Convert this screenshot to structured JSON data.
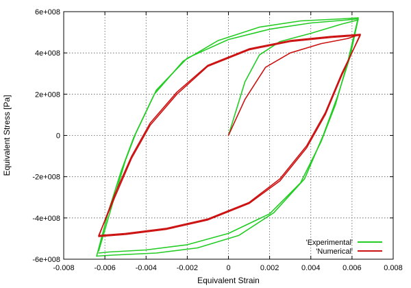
{
  "chart_data": {
    "type": "line",
    "xlabel": "Equivalent Strain",
    "ylabel": "Equivalent Stress [Pa]",
    "xlim": [
      -0.008,
      0.008
    ],
    "ylim": [
      -600000000,
      600000000
    ],
    "x_ticks": [
      -0.008,
      -0.006,
      -0.004,
      -0.002,
      0,
      0.002,
      0.004,
      0.006,
      0.008
    ],
    "x_tick_labels": [
      "-0.008",
      "-0.006",
      "-0.004",
      "-0.002",
      "0",
      "0.002",
      "0.004",
      "0.006",
      "0.008"
    ],
    "y_ticks": [
      -600000000,
      -400000000,
      -200000000,
      0,
      200000000,
      400000000,
      600000000
    ],
    "y_tick_labels": [
      "-6e+008",
      "-4e+008",
      "-2e+008",
      "0",
      "2e+008",
      "4e+008",
      "6e+008"
    ],
    "grid": true,
    "legend_position": "bottom-right",
    "series": [
      {
        "name": "'Experimental'",
        "color": "#22cc22",
        "segments": [
          [
            [
              0,
              0
            ],
            [
              0.0008,
              260000000.0
            ],
            [
              0.0015,
              390000000.0
            ],
            [
              0.0025,
              455000000.0
            ],
            [
              0.004,
              495000000.0
            ],
            [
              0.0055,
              540000000.0
            ],
            [
              0.0063,
              560000000.0
            ]
          ],
          [
            [
              0.0063,
              565000000.0
            ],
            [
              0.0058,
              560000000.0
            ],
            [
              0.004,
              545000000.0
            ],
            [
              0.002,
              515000000.0
            ],
            [
              0,
              465000000.0
            ],
            [
              -0.002,
              375000000.0
            ],
            [
              -0.0035,
              220000000.0
            ],
            [
              -0.0045,
              10000000.0
            ],
            [
              -0.005,
              -120000000.0
            ],
            [
              -0.0056,
              -320000000.0
            ],
            [
              -0.0063,
              -560000000.0
            ]
          ],
          [
            [
              -0.0063,
              -570000000.0
            ],
            [
              -0.0058,
              -565000000.0
            ],
            [
              -0.004,
              -555000000.0
            ],
            [
              -0.002,
              -530000000.0
            ],
            [
              0,
              -475000000.0
            ],
            [
              0.002,
              -380000000.0
            ],
            [
              0.0035,
              -230000000.0
            ],
            [
              0.0045,
              -30000000.0
            ],
            [
              0.0052,
              150000000.0
            ],
            [
              0.0058,
              360000000.0
            ],
            [
              0.0063,
              570000000.0
            ]
          ],
          [
            [
              0.0063,
              570000000.0
            ],
            [
              0.0055,
              565000000.0
            ],
            [
              0.0035,
              555000000.0
            ],
            [
              0.0015,
              525000000.0
            ],
            [
              -0.0005,
              460000000.0
            ],
            [
              -0.0022,
              360000000.0
            ],
            [
              -0.0036,
              200000000.0
            ],
            [
              -0.0046,
              -10000000.0
            ],
            [
              -0.0052,
              -170000000.0
            ],
            [
              -0.0058,
              -360000000.0
            ],
            [
              -0.0064,
              -585000000.0
            ]
          ],
          [
            [
              -0.0064,
              -585000000.0
            ],
            [
              -0.0056,
              -580000000.0
            ],
            [
              -0.0035,
              -570000000.0
            ],
            [
              -0.0015,
              -545000000.0
            ],
            [
              0.0005,
              -485000000.0
            ],
            [
              0.0022,
              -375000000.0
            ],
            [
              0.0037,
              -210000000.0
            ],
            [
              0.0046,
              0.0
            ],
            [
              0.0053,
              190000000.0
            ],
            [
              0.0059,
              380000000.0
            ],
            [
              0.0063,
              565000000.0
            ]
          ]
        ]
      },
      {
        "name": "'Numerical'",
        "color": "#cc1111",
        "segments": [
          [
            [
              0,
              0
            ],
            [
              0.0008,
              175000000.0
            ],
            [
              0.0018,
              330000000.0
            ],
            [
              0.003,
              400000000.0
            ],
            [
              0.0045,
              445000000.0
            ],
            [
              0.0058,
              470000000.0
            ],
            [
              0.0064,
              490000000.0
            ]
          ],
          [
            [
              0.0064,
              490000000.0
            ],
            [
              0.005,
              480000000.0
            ],
            [
              0.003,
              460000000.0
            ],
            [
              0.001,
              420000000.0
            ],
            [
              -0.001,
              340000000.0
            ],
            [
              -0.0025,
              210000000.0
            ],
            [
              -0.0038,
              60000000.0
            ],
            [
              -0.0047,
              -100000000.0
            ],
            [
              -0.0055,
              -280000000.0
            ],
            [
              -0.0063,
              -490000000.0
            ]
          ],
          [
            [
              -0.0063,
              -490000000.0
            ],
            [
              -0.005,
              -480000000.0
            ],
            [
              -0.003,
              -455000000.0
            ],
            [
              -0.001,
              -410000000.0
            ],
            [
              0.001,
              -330000000.0
            ],
            [
              0.0025,
              -220000000.0
            ],
            [
              0.0038,
              -60000000.0
            ],
            [
              0.0047,
              100000000.0
            ],
            [
              0.0055,
              290000000.0
            ],
            [
              0.0064,
              490000000.0
            ]
          ],
          [
            [
              0.0064,
              485000000.0
            ],
            [
              0.005,
              475000000.0
            ],
            [
              0.003,
              455000000.0
            ],
            [
              0.001,
              415000000.0
            ],
            [
              -0.001,
              335000000.0
            ],
            [
              -0.0025,
              200000000.0
            ],
            [
              -0.0038,
              50000000.0
            ],
            [
              -0.0047,
              -110000000.0
            ],
            [
              -0.0055,
              -295000000.0
            ],
            [
              -0.0063,
              -485000000.0
            ]
          ],
          [
            [
              -0.0063,
              -485000000.0
            ],
            [
              -0.005,
              -475000000.0
            ],
            [
              -0.003,
              -450000000.0
            ],
            [
              -0.001,
              -405000000.0
            ],
            [
              0.001,
              -325000000.0
            ],
            [
              0.0025,
              -210000000.0
            ],
            [
              0.0038,
              -50000000.0
            ],
            [
              0.0047,
              110000000.0
            ],
            [
              0.0055,
              300000000.0
            ],
            [
              0.0064,
              485000000.0
            ]
          ]
        ]
      }
    ]
  }
}
